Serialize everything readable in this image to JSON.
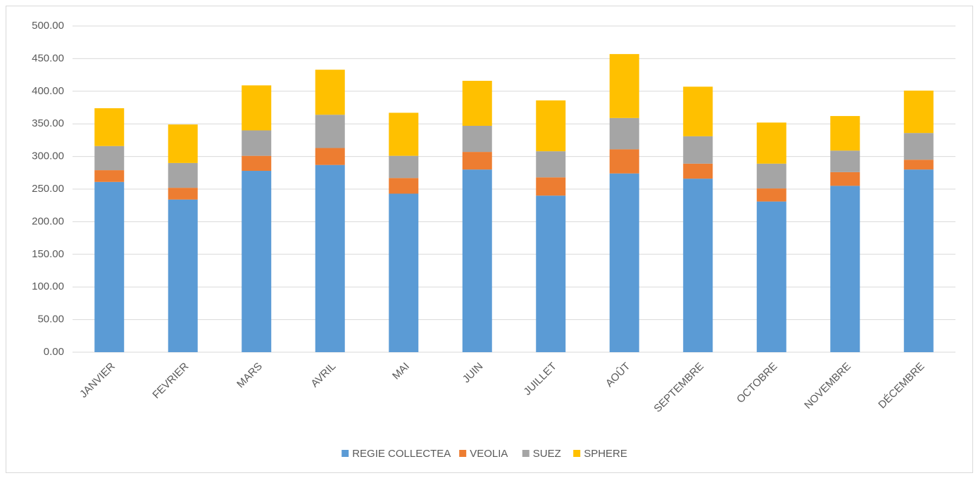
{
  "chart_data": {
    "type": "stacked-bar",
    "categories": [
      "JANVIER",
      "FEVRIER",
      "MARS",
      "AVRIL",
      "MAI",
      "JUIN",
      "JUILLET",
      "AOÛT",
      "SEPTEMBRE",
      "OCTOBRE",
      "NOVEMBRE",
      "DÉCEMBRE"
    ],
    "series": [
      {
        "name": "REGIE COLLECTEA",
        "color": "#5b9bd5",
        "values": [
          261,
          234,
          278,
          287,
          243,
          280,
          240,
          274,
          266,
          231,
          255,
          280
        ]
      },
      {
        "name": "VEOLIA",
        "color": "#ed7d31",
        "values": [
          18,
          18,
          23,
          26,
          24,
          27,
          28,
          37,
          23,
          20,
          21,
          15
        ]
      },
      {
        "name": "SUEZ",
        "color": "#a5a5a5",
        "values": [
          37,
          38,
          39,
          51,
          34,
          40,
          40,
          48,
          42,
          38,
          33,
          41
        ]
      },
      {
        "name": "SPHERE",
        "color": "#ffc000",
        "values": [
          58,
          59,
          69,
          69,
          66,
          69,
          78,
          98,
          76,
          63,
          53,
          65
        ]
      }
    ],
    "ylim": [
      0,
      500
    ],
    "yticks": [
      {
        "value": 0,
        "label": "0.00"
      },
      {
        "value": 50,
        "label": "50.00"
      },
      {
        "value": 100,
        "label": "100.00"
      },
      {
        "value": 150,
        "label": "150.00"
      },
      {
        "value": 200,
        "label": "200.00"
      },
      {
        "value": 250,
        "label": "250.00"
      },
      {
        "value": 300,
        "label": "300.00"
      },
      {
        "value": 350,
        "label": "350.00"
      },
      {
        "value": 400,
        "label": "400.00"
      },
      {
        "value": 450,
        "label": "450.00"
      },
      {
        "value": 500,
        "label": "500.00"
      }
    ],
    "grid": true,
    "legend": "bottom"
  }
}
